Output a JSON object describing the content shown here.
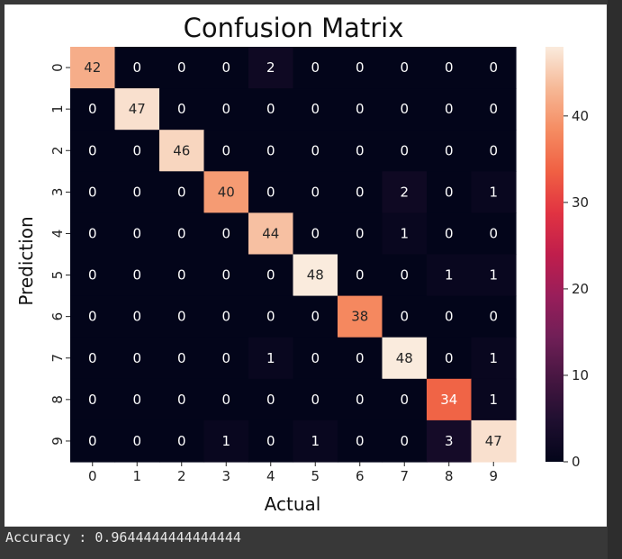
{
  "output": {
    "accuracy_text": "Accuracy : 0.9644444444444444"
  },
  "colors": {
    "background": "#383838",
    "figure": "#ffffff",
    "text": "#e8e8e8"
  },
  "chart_data": {
    "type": "heatmap",
    "title": "Confusion Matrix",
    "xlabel": "Actual",
    "ylabel": "Prediction",
    "x_categories": [
      "0",
      "1",
      "2",
      "3",
      "4",
      "5",
      "6",
      "7",
      "8",
      "9"
    ],
    "y_categories": [
      "0",
      "1",
      "2",
      "3",
      "4",
      "5",
      "6",
      "7",
      "8",
      "9"
    ],
    "values": [
      [
        42,
        0,
        0,
        0,
        2,
        0,
        0,
        0,
        0,
        0
      ],
      [
        0,
        47,
        0,
        0,
        0,
        0,
        0,
        0,
        0,
        0
      ],
      [
        0,
        0,
        46,
        0,
        0,
        0,
        0,
        0,
        0,
        0
      ],
      [
        0,
        0,
        0,
        40,
        0,
        0,
        0,
        2,
        0,
        1
      ],
      [
        0,
        0,
        0,
        0,
        44,
        0,
        0,
        1,
        0,
        0
      ],
      [
        0,
        0,
        0,
        0,
        0,
        48,
        0,
        0,
        1,
        1
      ],
      [
        0,
        0,
        0,
        0,
        0,
        0,
        38,
        0,
        0,
        0
      ],
      [
        0,
        0,
        0,
        0,
        1,
        0,
        0,
        48,
        0,
        1
      ],
      [
        0,
        0,
        0,
        0,
        0,
        0,
        0,
        0,
        34,
        1
      ],
      [
        0,
        0,
        0,
        1,
        0,
        1,
        0,
        0,
        3,
        47
      ]
    ],
    "colorbar": {
      "range": [
        0,
        48
      ],
      "ticks": [
        0,
        10,
        20,
        30,
        40
      ],
      "colormap": "rocket"
    },
    "annotations": true
  }
}
